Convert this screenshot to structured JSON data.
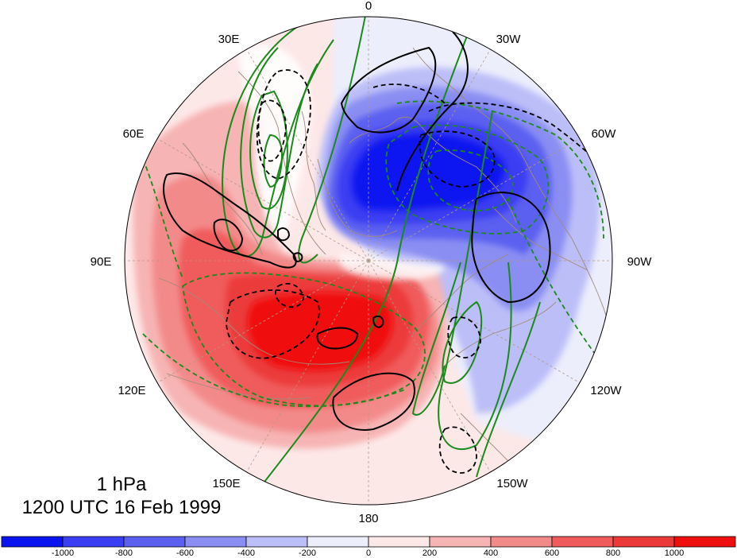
{
  "map": {
    "longitude_labels": [
      "0",
      "30W",
      "60W",
      "90W",
      "120W",
      "150W",
      "180",
      "150E",
      "120E",
      "90E",
      "60E",
      "30E"
    ],
    "level": "1 hPa",
    "datetime": "1200 UTC 16 Feb 1999"
  },
  "colorbar": {
    "ticks": [
      "-1000",
      "-800",
      "-600",
      "-400",
      "-200",
      "0",
      "200",
      "400",
      "600",
      "800",
      "1000"
    ],
    "colors": [
      "#0a14f0",
      "#3a3ef2",
      "#5c60f0",
      "#8a8ef2",
      "#bcbef8",
      "#eceefc",
      "#fde8e8",
      "#f7b4b4",
      "#f38a8a",
      "#f05c5c",
      "#ec3a3a",
      "#f00f0f"
    ]
  },
  "palette": {
    "contour_green": "#1a8a1a",
    "contour_black": "#000000",
    "coastline": "#a08a7a",
    "graticule": "#b09a86"
  }
}
